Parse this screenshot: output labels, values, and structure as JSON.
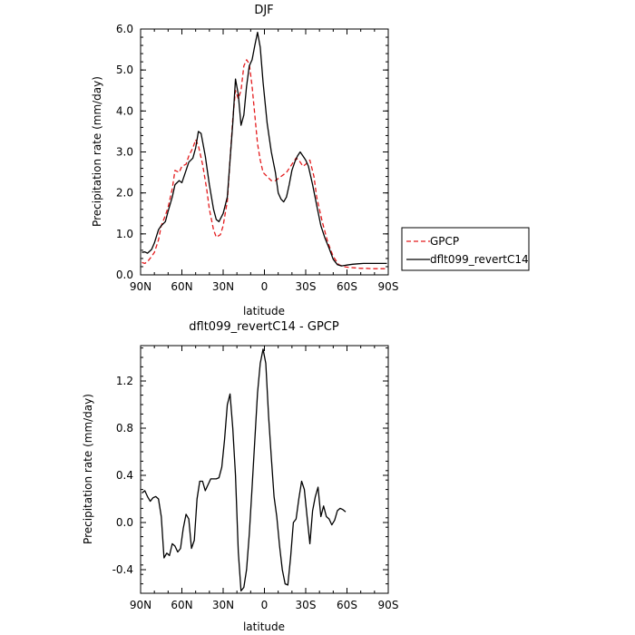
{
  "chart_data": [
    {
      "type": "line",
      "title": "DJF",
      "xlabel": "latitude",
      "ylabel": "Precipitation rate (mm/day)",
      "xlim": [
        90,
        -90
      ],
      "ylim": [
        0,
        6
      ],
      "x_ticks": [
        90,
        60,
        30,
        0,
        -30,
        -60,
        -90
      ],
      "x_tick_labels": [
        "90N",
        "60N",
        "30N",
        "0",
        "30S",
        "60S",
        "90S"
      ],
      "y_ticks": [
        0,
        1,
        2,
        3,
        4,
        5,
        6
      ],
      "y_tick_labels": [
        "0.0",
        "1.0",
        "2.0",
        "3.0",
        "4.0",
        "5.0",
        "6.0"
      ],
      "legend_position": "outside-right",
      "series": [
        {
          "name": "GPCP",
          "color": "#e41a1c",
          "dash": "dashed",
          "points": [
            [
              89,
              0.3
            ],
            [
              87,
              0.28
            ],
            [
              85,
              0.32
            ],
            [
              82,
              0.45
            ],
            [
              80,
              0.55
            ],
            [
              77,
              0.85
            ],
            [
              75,
              1.2
            ],
            [
              72,
              1.45
            ],
            [
              70,
              1.65
            ],
            [
              67,
              2.1
            ],
            [
              65,
              2.55
            ],
            [
              62,
              2.5
            ],
            [
              60,
              2.65
            ],
            [
              57,
              2.7
            ],
            [
              55,
              2.9
            ],
            [
              52,
              3.1
            ],
            [
              50,
              3.3
            ],
            [
              48,
              3.15
            ],
            [
              45,
              2.7
            ],
            [
              42,
              2.1
            ],
            [
              40,
              1.6
            ],
            [
              37,
              1.1
            ],
            [
              35,
              0.92
            ],
            [
              32,
              0.98
            ],
            [
              30,
              1.2
            ],
            [
              27,
              1.8
            ],
            [
              25,
              2.8
            ],
            [
              23,
              3.8
            ],
            [
              21,
              4.5
            ],
            [
              19,
              4.3
            ],
            [
              17,
              4.5
            ],
            [
              15,
              5.1
            ],
            [
              13,
              5.25
            ],
            [
              11,
              5.15
            ],
            [
              9,
              4.6
            ],
            [
              7,
              3.9
            ],
            [
              5,
              3.2
            ],
            [
              3,
              2.8
            ],
            [
              1,
              2.5
            ],
            [
              -2,
              2.4
            ],
            [
              -5,
              2.3
            ],
            [
              -8,
              2.3
            ],
            [
              -12,
              2.4
            ],
            [
              -16,
              2.5
            ],
            [
              -20,
              2.7
            ],
            [
              -23,
              2.85
            ],
            [
              -25,
              2.8
            ],
            [
              -28,
              2.65
            ],
            [
              -30,
              2.7
            ],
            [
              -33,
              2.8
            ],
            [
              -36,
              2.4
            ],
            [
              -38,
              1.9
            ],
            [
              -42,
              1.3
            ],
            [
              -46,
              0.8
            ],
            [
              -50,
              0.45
            ],
            [
              -54,
              0.25
            ],
            [
              -58,
              0.2
            ],
            [
              -62,
              0.18
            ],
            [
              -66,
              0.17
            ],
            [
              -70,
              0.16
            ],
            [
              -74,
              0.16
            ],
            [
              -78,
              0.15
            ],
            [
              -82,
              0.15
            ],
            [
              -86,
              0.15
            ],
            [
              -89,
              0.15
            ]
          ]
        },
        {
          "name": "dflt099_revertC14",
          "color": "#000000",
          "dash": "solid",
          "points": [
            [
              89,
              0.55
            ],
            [
              87,
              0.56
            ],
            [
              85,
              0.53
            ],
            [
              82,
              0.62
            ],
            [
              80,
              0.78
            ],
            [
              77,
              1.1
            ],
            [
              75,
              1.2
            ],
            [
              72,
              1.3
            ],
            [
              70,
              1.55
            ],
            [
              67,
              1.9
            ],
            [
              65,
              2.2
            ],
            [
              62,
              2.3
            ],
            [
              60,
              2.25
            ],
            [
              57,
              2.55
            ],
            [
              55,
              2.75
            ],
            [
              52,
              2.85
            ],
            [
              50,
              3.1
            ],
            [
              48,
              3.5
            ],
            [
              46,
              3.45
            ],
            [
              43,
              2.9
            ],
            [
              40,
              2.2
            ],
            [
              37,
              1.6
            ],
            [
              35,
              1.35
            ],
            [
              33,
              1.3
            ],
            [
              30,
              1.5
            ],
            [
              27,
              1.9
            ],
            [
              25,
              2.8
            ],
            [
              23,
              3.7
            ],
            [
              21,
              4.78
            ],
            [
              19,
              4.4
            ],
            [
              17,
              3.65
            ],
            [
              15,
              3.9
            ],
            [
              13,
              4.6
            ],
            [
              11,
              5.1
            ],
            [
              9,
              5.25
            ],
            [
              7,
              5.6
            ],
            [
              5,
              5.92
            ],
            [
              3,
              5.55
            ],
            [
              1,
              4.7
            ],
            [
              -2,
              3.7
            ],
            [
              -5,
              3.0
            ],
            [
              -8,
              2.5
            ],
            [
              -10,
              2.0
            ],
            [
              -12,
              1.85
            ],
            [
              -14,
              1.78
            ],
            [
              -16,
              1.9
            ],
            [
              -18,
              2.2
            ],
            [
              -20,
              2.55
            ],
            [
              -22,
              2.75
            ],
            [
              -24,
              2.9
            ],
            [
              -26,
              3.0
            ],
            [
              -28,
              2.9
            ],
            [
              -30,
              2.8
            ],
            [
              -32,
              2.65
            ],
            [
              -35,
              2.2
            ],
            [
              -38,
              1.7
            ],
            [
              -41,
              1.2
            ],
            [
              -44,
              0.9
            ],
            [
              -47,
              0.65
            ],
            [
              -50,
              0.38
            ],
            [
              -53,
              0.25
            ],
            [
              -56,
              0.22
            ],
            [
              -60,
              0.24
            ],
            [
              -64,
              0.26
            ],
            [
              -68,
              0.27
            ],
            [
              -72,
              0.28
            ],
            [
              -76,
              0.28
            ],
            [
              -80,
              0.28
            ],
            [
              -84,
              0.28
            ],
            [
              -89,
              0.28
            ]
          ]
        }
      ]
    },
    {
      "type": "line",
      "title": "dflt099_revertC14 - GPCP",
      "xlabel": "latitude",
      "ylabel": "Precipitation rate (mm/day)",
      "xlim": [
        90,
        -90
      ],
      "ylim": [
        -0.6,
        1.5
      ],
      "x_ticks": [
        90,
        60,
        30,
        0,
        -30,
        -60,
        -90
      ],
      "x_tick_labels": [
        "90N",
        "60N",
        "30N",
        "0",
        "30S",
        "60S",
        "90S"
      ],
      "y_ticks": [
        -0.4,
        0.0,
        0.4,
        0.8,
        1.2
      ],
      "y_tick_labels": [
        "-0.4",
        "0.0",
        "0.4",
        "0.8",
        "1.2"
      ],
      "series": [
        {
          "name": "",
          "color": "#000000",
          "dash": "solid",
          "points": [
            [
              89,
              0.25
            ],
            [
              87,
              0.27
            ],
            [
              85,
              0.22
            ],
            [
              83,
              0.18
            ],
            [
              81,
              0.21
            ],
            [
              79,
              0.22
            ],
            [
              77,
              0.2
            ],
            [
              75,
              0.05
            ],
            [
              73,
              -0.3
            ],
            [
              71,
              -0.26
            ],
            [
              69,
              -0.28
            ],
            [
              67,
              -0.18
            ],
            [
              65,
              -0.2
            ],
            [
              63,
              -0.25
            ],
            [
              61,
              -0.22
            ],
            [
              59,
              -0.05
            ],
            [
              57,
              0.07
            ],
            [
              55,
              0.03
            ],
            [
              53,
              -0.22
            ],
            [
              51,
              -0.15
            ],
            [
              49,
              0.2
            ],
            [
              47,
              0.35
            ],
            [
              45,
              0.35
            ],
            [
              43,
              0.27
            ],
            [
              41,
              0.32
            ],
            [
              39,
              0.37
            ],
            [
              37,
              0.37
            ],
            [
              35,
              0.37
            ],
            [
              33,
              0.38
            ],
            [
              31,
              0.47
            ],
            [
              29,
              0.7
            ],
            [
              27,
              1.0
            ],
            [
              25,
              1.09
            ],
            [
              23,
              0.8
            ],
            [
              21,
              0.4
            ],
            [
              19,
              -0.25
            ],
            [
              17,
              -0.58
            ],
            [
              15,
              -0.55
            ],
            [
              13,
              -0.4
            ],
            [
              11,
              -0.1
            ],
            [
              9,
              0.3
            ],
            [
              7,
              0.7
            ],
            [
              5,
              1.1
            ],
            [
              3,
              1.35
            ],
            [
              1,
              1.47
            ],
            [
              -1,
              1.35
            ],
            [
              -3,
              0.9
            ],
            [
              -5,
              0.55
            ],
            [
              -7,
              0.22
            ],
            [
              -9,
              0.05
            ],
            [
              -11,
              -0.2
            ],
            [
              -13,
              -0.4
            ],
            [
              -15,
              -0.52
            ],
            [
              -17,
              -0.53
            ],
            [
              -19,
              -0.3
            ],
            [
              -21,
              0.0
            ],
            [
              -23,
              0.03
            ],
            [
              -25,
              0.2
            ],
            [
              -27,
              0.35
            ],
            [
              -29,
              0.28
            ],
            [
              -31,
              0.05
            ],
            [
              -33,
              -0.18
            ],
            [
              -35,
              0.1
            ],
            [
              -37,
              0.22
            ],
            [
              -39,
              0.3
            ],
            [
              -41,
              0.05
            ],
            [
              -43,
              0.14
            ],
            [
              -45,
              0.05
            ],
            [
              -47,
              0.03
            ],
            [
              -49,
              -0.02
            ],
            [
              -51,
              0.02
            ],
            [
              -53,
              0.1
            ],
            [
              -55,
              0.12
            ],
            [
              -57,
              0.11
            ],
            [
              -59,
              0.09
            ]
          ]
        }
      ]
    }
  ]
}
